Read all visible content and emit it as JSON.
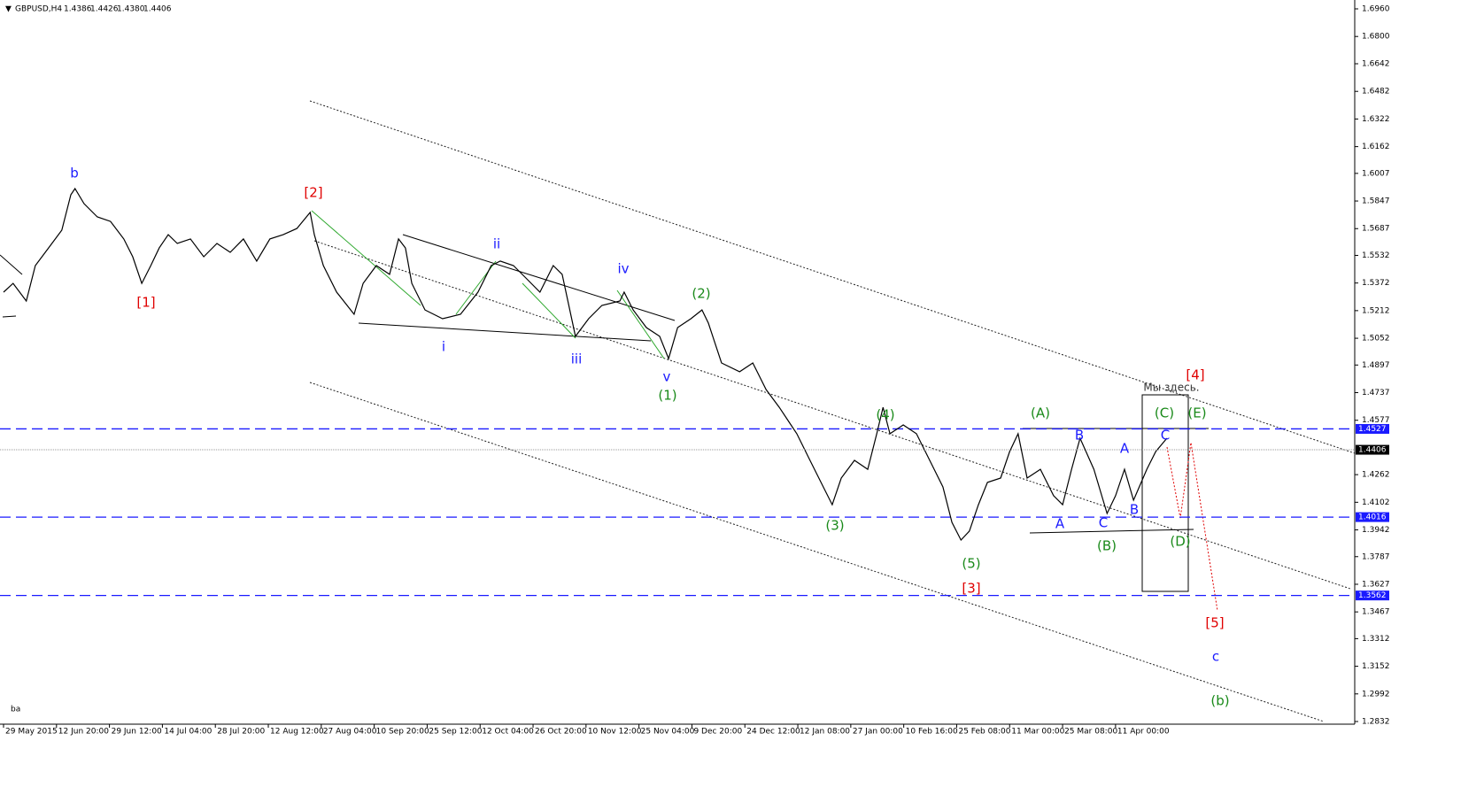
{
  "chart_data": {
    "type": "line",
    "title": "GBPUSD,H4",
    "ohlc": [
      "1.4386",
      "1.4426",
      "1.4380",
      "1.4406"
    ],
    "indicator": "ba",
    "xlim": [
      0,
      25.5
    ],
    "xticks": [
      {
        "value": 0,
        "label": "29 May 2015"
      },
      {
        "value": 1,
        "label": "12 Jun 20:00"
      },
      {
        "value": 2,
        "label": "29 Jun 12:00"
      },
      {
        "value": 3,
        "label": "14 Jul 04:00"
      },
      {
        "value": 4,
        "label": "28 Jul 20:00"
      },
      {
        "value": 5,
        "label": "12 Aug 12:00"
      },
      {
        "value": 6,
        "label": "27 Aug 04:00"
      },
      {
        "value": 7,
        "label": "10 Sep 20:00"
      },
      {
        "value": 8,
        "label": "25 Sep 12:00"
      },
      {
        "value": 9,
        "label": "12 Oct 04:00"
      },
      {
        "value": 10,
        "label": "26 Oct 20:00"
      },
      {
        "value": 11,
        "label": "10 Nov 12:00"
      },
      {
        "value": 12,
        "label": "25 Nov 04:00"
      },
      {
        "value": 13,
        "label": "9 Dec 20:00"
      },
      {
        "value": 14,
        "label": "24 Dec 12:00"
      },
      {
        "value": 15,
        "label": "12 Jan 08:00"
      },
      {
        "value": 16,
        "label": "27 Jan 00:00"
      },
      {
        "value": 17,
        "label": "10 Feb 16:00"
      },
      {
        "value": 18,
        "label": "25 Feb 08:00"
      },
      {
        "value": 19,
        "label": "11 Mar 00:00"
      },
      {
        "value": 20,
        "label": "25 Mar 08:00"
      },
      {
        "value": 21,
        "label": "11 Apr 00:00"
      }
    ],
    "ylim": [
      1.2832,
      1.696
    ],
    "yticks": [
      {
        "value": 1.696,
        "label": "1.6960"
      },
      {
        "value": 1.68,
        "label": "1.6800"
      },
      1.6642,
      1.6482,
      1.6322,
      1.6162,
      1.6007,
      1.5847,
      1.5687,
      1.5532,
      1.5372,
      1.5212,
      1.5052,
      1.4897,
      1.4737,
      1.4577,
      1.4262,
      1.4102,
      1.3942,
      1.3787,
      1.3627,
      1.3467,
      1.3312,
      1.3152,
      1.2992,
      1.2832
    ],
    "levels": [
      1.4527,
      1.4016,
      1.3562
    ],
    "level_color": "#1a1aff",
    "last": 1.4406,
    "series": [
      {
        "color": "#000000",
        "x": [
          0.0,
          0.18,
          0.43,
          0.6,
          0.85,
          1.1,
          1.27,
          1.35,
          1.52,
          1.77,
          2.02,
          2.27,
          2.44,
          2.61,
          2.78,
          2.94,
          3.11,
          3.28,
          3.53,
          3.78,
          4.03,
          4.28,
          4.53,
          4.78,
          5.03,
          5.28,
          5.54,
          5.79,
          5.87,
          6.04,
          6.29,
          6.62,
          6.79,
          7.04,
          7.29,
          7.46,
          7.59,
          7.71,
          7.96,
          8.29,
          8.63,
          8.96,
          9.21,
          9.38,
          9.63,
          9.88,
          10.13,
          10.38,
          10.55,
          10.8,
          11.05,
          11.3,
          11.64,
          11.72,
          11.89,
          12.14,
          12.39,
          12.56,
          12.73,
          12.98,
          13.19,
          13.31,
          13.56,
          13.9,
          14.15,
          14.4,
          14.65,
          14.98,
          15.23,
          15.48,
          15.65,
          15.82,
          16.07,
          16.32,
          16.49,
          16.61,
          16.74,
          16.99,
          17.24,
          17.49,
          17.74,
          17.91,
          18.08,
          18.24,
          18.41,
          18.58,
          18.83,
          19.0,
          19.16,
          19.33,
          19.58,
          19.83,
          20.0,
          20.17,
          20.33,
          20.59,
          20.84,
          21.0,
          21.17,
          21.34,
          21.59,
          21.76,
          21.97
        ],
        "values": [
          1.5319,
          1.537,
          1.5268,
          1.5473,
          1.5575,
          1.5678,
          1.5883,
          1.5919,
          1.5832,
          1.5755,
          1.5729,
          1.5627,
          1.5524,
          1.537,
          1.5473,
          1.5575,
          1.5652,
          1.5601,
          1.5627,
          1.5524,
          1.5601,
          1.555,
          1.5627,
          1.5499,
          1.5627,
          1.5652,
          1.5688,
          1.5781,
          1.5652,
          1.5473,
          1.5319,
          1.5191,
          1.537,
          1.5473,
          1.5422,
          1.5627,
          1.5575,
          1.537,
          1.5216,
          1.5165,
          1.5191,
          1.5319,
          1.5473,
          1.5499,
          1.5473,
          1.5396,
          1.5319,
          1.5473,
          1.5422,
          1.5063,
          1.5165,
          1.5242,
          1.5268,
          1.5319,
          1.5216,
          1.5114,
          1.5063,
          1.4934,
          1.5114,
          1.5165,
          1.5216,
          1.514,
          1.4909,
          1.4858,
          1.4909,
          1.4755,
          1.4652,
          1.4499,
          1.4345,
          1.4191,
          1.4088,
          1.4242,
          1.4345,
          1.4293,
          1.4499,
          1.4652,
          1.4499,
          1.455,
          1.4499,
          1.4345,
          1.4191,
          1.3986,
          1.3883,
          1.3935,
          1.4088,
          1.4217,
          1.4242,
          1.4396,
          1.4499,
          1.4242,
          1.4293,
          1.414,
          1.4088,
          1.4293,
          1.4473,
          1.4293,
          1.4037,
          1.414,
          1.4293,
          1.4114,
          1.4293,
          1.4396,
          1.4473
        ]
      }
    ],
    "annotations": [
      {
        "text": "b",
        "color": "#1a1aff"
      },
      {
        "text": "[1]",
        "color": "#e00000"
      },
      {
        "text": "[2]",
        "color": "#e00000"
      },
      {
        "text": "i",
        "color": "#1a1aff"
      },
      {
        "text": "ii",
        "color": "#1a1aff"
      },
      {
        "text": "iii",
        "color": "#1a1aff"
      },
      {
        "text": "iv",
        "color": "#1a1aff"
      },
      {
        "text": "v",
        "color": "#1a1aff"
      },
      {
        "text": "(1)",
        "color": "#1a8a1a"
      },
      {
        "text": "(2)",
        "color": "#1a8a1a"
      },
      {
        "text": "(3)",
        "color": "#1a8a1a"
      },
      {
        "text": "(4)",
        "color": "#1a8a1a"
      },
      {
        "text": "(5)",
        "color": "#1a8a1a"
      },
      {
        "text": "[3]",
        "color": "#e00000"
      },
      {
        "text": "(A)",
        "color": "#1a8a1a"
      },
      {
        "text": "A",
        "color": "#1a1aff"
      },
      {
        "text": "B",
        "color": "#1a1aff"
      },
      {
        "text": "C",
        "color": "#1a1aff"
      },
      {
        "text": "(B)",
        "color": "#1a8a1a"
      },
      {
        "text": "A",
        "color": "#1a1aff"
      },
      {
        "text": "B",
        "color": "#1a1aff"
      },
      {
        "text": "C",
        "color": "#1a1aff"
      },
      {
        "text": "(C)",
        "color": "#1a8a1a"
      },
      {
        "text": "(D)",
        "color": "#1a8a1a"
      },
      {
        "text": "(E)",
        "color": "#1a8a1a"
      },
      {
        "text": "[4]",
        "color": "#e00000"
      },
      {
        "text": "Мы здесь.",
        "color": "#333333"
      },
      {
        "text": "[5]",
        "color": "#e00000"
      },
      {
        "text": "c",
        "color": "#1a1aff"
      },
      {
        "text": "(b)",
        "color": "#1a8a1a"
      }
    ]
  }
}
